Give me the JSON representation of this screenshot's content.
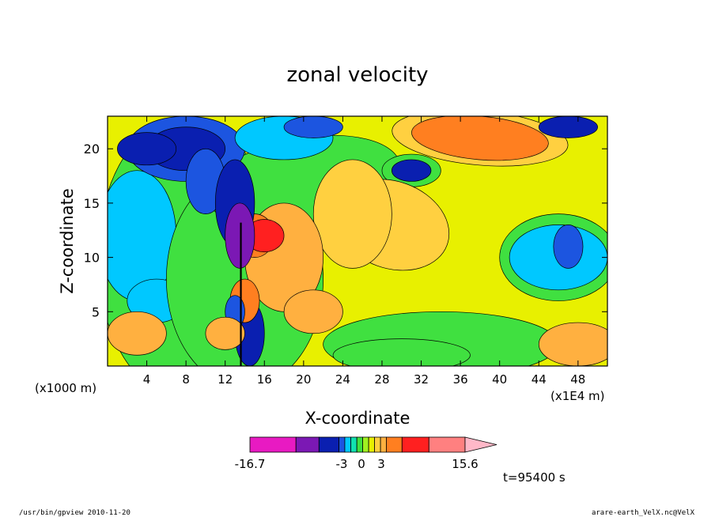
{
  "chart_data": {
    "type": "heatmap",
    "title": "zonal velocity",
    "xlabel": "X-coordinate",
    "ylabel": "Z-coordinate",
    "x_unit_left": "(x1000 m)",
    "x_unit_right": "(x1E4 m)",
    "xlim": [
      0,
      51
    ],
    "ylim": [
      0,
      23
    ],
    "x_ticks": [
      4,
      8,
      12,
      16,
      20,
      24,
      28,
      32,
      36,
      40,
      44,
      48
    ],
    "y_ticks": [
      5,
      10,
      15,
      20
    ],
    "colorbar": {
      "colors": [
        "#e81ac2",
        "#7b18b4",
        "#0a1fb0",
        "#1c55e0",
        "#00c8ff",
        "#10e0b0",
        "#40e040",
        "#a0f020",
        "#e8f000",
        "#ffd040",
        "#ffb040",
        "#ff7f20",
        "#ff2020",
        "#ff8080",
        "#ffb8c8"
      ],
      "labels": [
        "-16.7",
        "-3",
        "0",
        "3",
        "15.6"
      ]
    },
    "time_label": "t=95400 s",
    "grid": false
  },
  "footer": {
    "left": "/usr/bin/gpview  2010-11-20",
    "right": "arare-earth_VelX.nc@VelX"
  }
}
